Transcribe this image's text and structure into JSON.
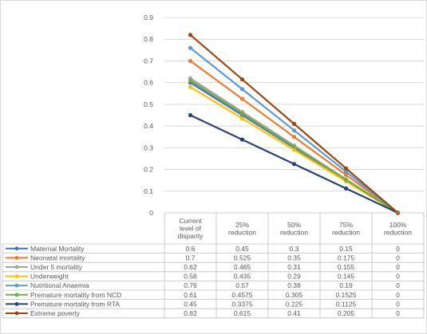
{
  "chart_data": {
    "type": "line",
    "title": "",
    "xlabel": "",
    "ylabel": "",
    "ylim": [
      0,
      0.9
    ],
    "yticks": [
      0,
      0.1,
      0.2,
      0.3,
      0.4,
      0.5,
      0.6,
      0.7,
      0.8,
      0.9
    ],
    "ytick_labels": [
      "0",
      "0.1",
      "0.2",
      "0.3",
      "0.4",
      "0.5",
      "0.6",
      "0.7",
      "0.8",
      "0.9"
    ],
    "grid": true,
    "legend": "data-table-left",
    "categories": [
      [
        "Current",
        "level of",
        "disparity"
      ],
      [
        "25%",
        "reduction"
      ],
      [
        "50%",
        "reduction"
      ],
      [
        "75%",
        "reduction"
      ],
      [
        "100%",
        "reduction"
      ]
    ],
    "series": [
      {
        "name": "Maternal Mortality",
        "color": "#4472C4",
        "values": [
          0.6,
          0.45,
          0.3,
          0.15,
          0
        ],
        "labels": [
          "0.6",
          "0.45",
          "0.3",
          "0.15",
          "0"
        ]
      },
      {
        "name": "Neonatal mortality",
        "color": "#ED7D31",
        "values": [
          0.7,
          0.525,
          0.35,
          0.175,
          0
        ],
        "labels": [
          "0.7",
          "0.525",
          "0.35",
          "0.175",
          "0"
        ]
      },
      {
        "name": "Under 5 mortality",
        "color": "#A5A5A5",
        "values": [
          0.62,
          0.465,
          0.31,
          0.155,
          0
        ],
        "labels": [
          "0.62",
          "0.465",
          "0.31",
          "0.155",
          "0"
        ]
      },
      {
        "name": "Underweight",
        "color": "#FFC000",
        "values": [
          0.58,
          0.435,
          0.29,
          0.145,
          0
        ],
        "labels": [
          "0.58",
          "0.435",
          "0.29",
          "0.145",
          "0"
        ]
      },
      {
        "name": "Nutritional Anaemia",
        "color": "#5B9BD5",
        "values": [
          0.76,
          0.57,
          0.38,
          0.19,
          0
        ],
        "labels": [
          "0.76",
          "0.57",
          "0.38",
          "0.19",
          "0"
        ]
      },
      {
        "name": "Premature mortality from NCD",
        "color": "#70AD47",
        "values": [
          0.61,
          0.4575,
          0.305,
          0.1525,
          0
        ],
        "labels": [
          "0.61",
          "0.4575",
          "0.305",
          "0.1525",
          "0"
        ]
      },
      {
        "name": "Premature mortality from RTA",
        "color": "#264478",
        "values": [
          0.45,
          0.3375,
          0.225,
          0.1125,
          0
        ],
        "labels": [
          "0.45",
          "0.3375",
          "0.225",
          "0.1125",
          "0"
        ]
      },
      {
        "name": "Extreme poverty",
        "color": "#9E480E",
        "values": [
          0.82,
          0.615,
          0.41,
          0.205,
          0
        ],
        "labels": [
          "0.82",
          "0.615",
          "0.41",
          "0.205",
          "0"
        ]
      }
    ]
  }
}
